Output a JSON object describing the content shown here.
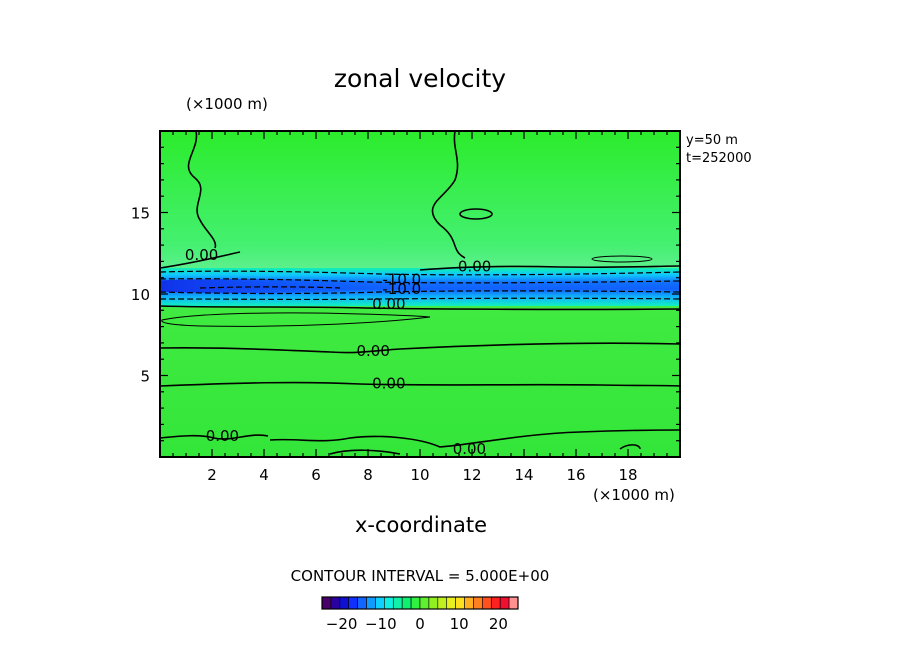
{
  "chart_data": {
    "type": "heatmap",
    "title": "zonal velocity",
    "xlabel": "x-coordinate",
    "x_unit": "(×1000 m)",
    "y_unit": "(×1000 m)",
    "xlim": [
      0,
      20
    ],
    "ylim": [
      0,
      20
    ],
    "xticks": [
      2,
      4,
      6,
      8,
      10,
      12,
      14,
      16,
      18
    ],
    "yticks": [
      5,
      10,
      15
    ],
    "annotations": [
      "y=50 m",
      "t=252000"
    ],
    "contour_interval_label": "CONTOUR INTERVAL = 5.000E+00",
    "contour_labels": [
      {
        "text": "0.00",
        "x": 1.6,
        "y": 12.4
      },
      {
        "text": "-10.0",
        "x": 9.3,
        "y": 10.9
      },
      {
        "text": "-10.0",
        "x": 9.3,
        "y": 10.3
      },
      {
        "text": "0.00",
        "x": 8.8,
        "y": 9.4
      },
      {
        "text": "0.00",
        "x": 12.1,
        "y": 11.7
      },
      {
        "text": "0.00",
        "x": 8.2,
        "y": 6.5
      },
      {
        "text": "0.00",
        "x": 8.8,
        "y": 4.5
      },
      {
        "text": "0.00",
        "x": 2.4,
        "y": 1.3
      },
      {
        "text": "0.00",
        "x": 11.9,
        "y": 0.5
      }
    ],
    "field_notes": "Near-zero (green) field with a westward jet minimum of about -20 centred at y≈10.5",
    "colorbar": {
      "ticks": [
        -20,
        -10,
        0,
        10,
        20
      ],
      "range": [
        -25,
        25
      ],
      "colors": [
        "#4a006a",
        "#2a00a0",
        "#1010d0",
        "#1030ff",
        "#1066ff",
        "#109cff",
        "#10d0ff",
        "#10f0e0",
        "#10f0a8",
        "#10f070",
        "#30f040",
        "#60f030",
        "#90f020",
        "#c0f020",
        "#e8f020",
        "#ffe020",
        "#ffb020",
        "#ff8020",
        "#ff5020",
        "#ff2020",
        "#f01030",
        "#ff9090"
      ]
    }
  }
}
